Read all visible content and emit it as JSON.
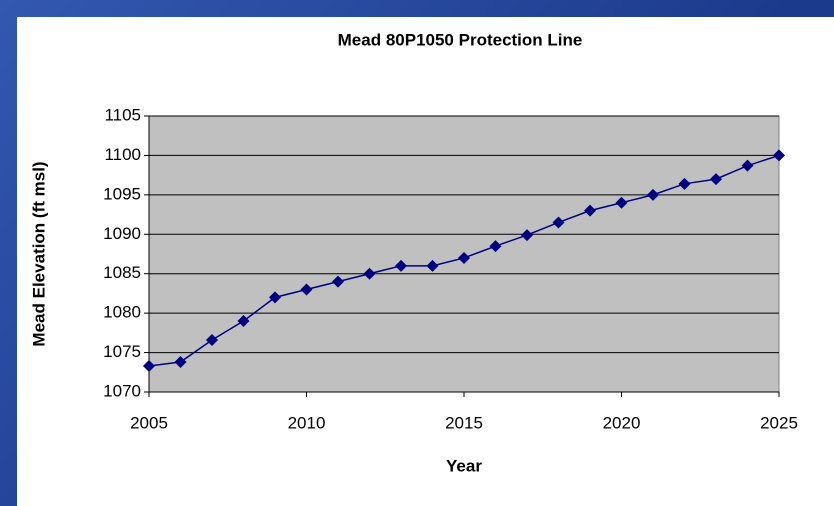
{
  "chart_data": {
    "type": "line",
    "title": "Mead 80P1050 Protection Line",
    "x_label": "Year",
    "y_label": "Mead Elevation (ft msl)",
    "x": [
      2005,
      2006,
      2007,
      2008,
      2009,
      2010,
      2011,
      2012,
      2013,
      2014,
      2015,
      2016,
      2017,
      2018,
      2019,
      2020,
      2021,
      2022,
      2023,
      2024,
      2025
    ],
    "series": [
      {
        "name": "Protection Line",
        "color": "#000080",
        "values": [
          1073.3,
          1073.8,
          1076.6,
          1079,
          1082,
          1083,
          1084,
          1085,
          1086,
          1086,
          1087,
          1088.5,
          1089.9,
          1091.5,
          1093,
          1094,
          1095,
          1096.4,
          1097,
          1098.7,
          1100
        ]
      }
    ],
    "xlim": [
      2005,
      2025
    ],
    "xticks": [
      2005,
      2010,
      2015,
      2020,
      2025
    ],
    "ylim": [
      1070,
      1105
    ],
    "yticks": [
      1070,
      1075,
      1080,
      1085,
      1090,
      1095,
      1100,
      1105
    ],
    "grid": true,
    "plot_background": "#c0c0c0"
  }
}
